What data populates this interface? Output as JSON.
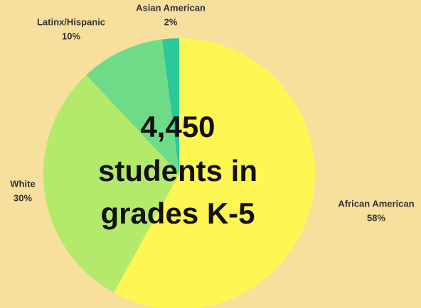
{
  "chart_data": {
    "type": "pie",
    "categories": [
      "African American",
      "White",
      "Latinx/Hispanic",
      "Asian American"
    ],
    "values": [
      58,
      30,
      10,
      2
    ],
    "value_labels": [
      "58%",
      "30%",
      "10%",
      "2%"
    ],
    "colors": [
      "#fef653",
      "#b4ea6b",
      "#6ddb88",
      "#2ac999"
    ],
    "annotations": [
      "4,450",
      "students in",
      "grades K-5"
    ]
  }
}
